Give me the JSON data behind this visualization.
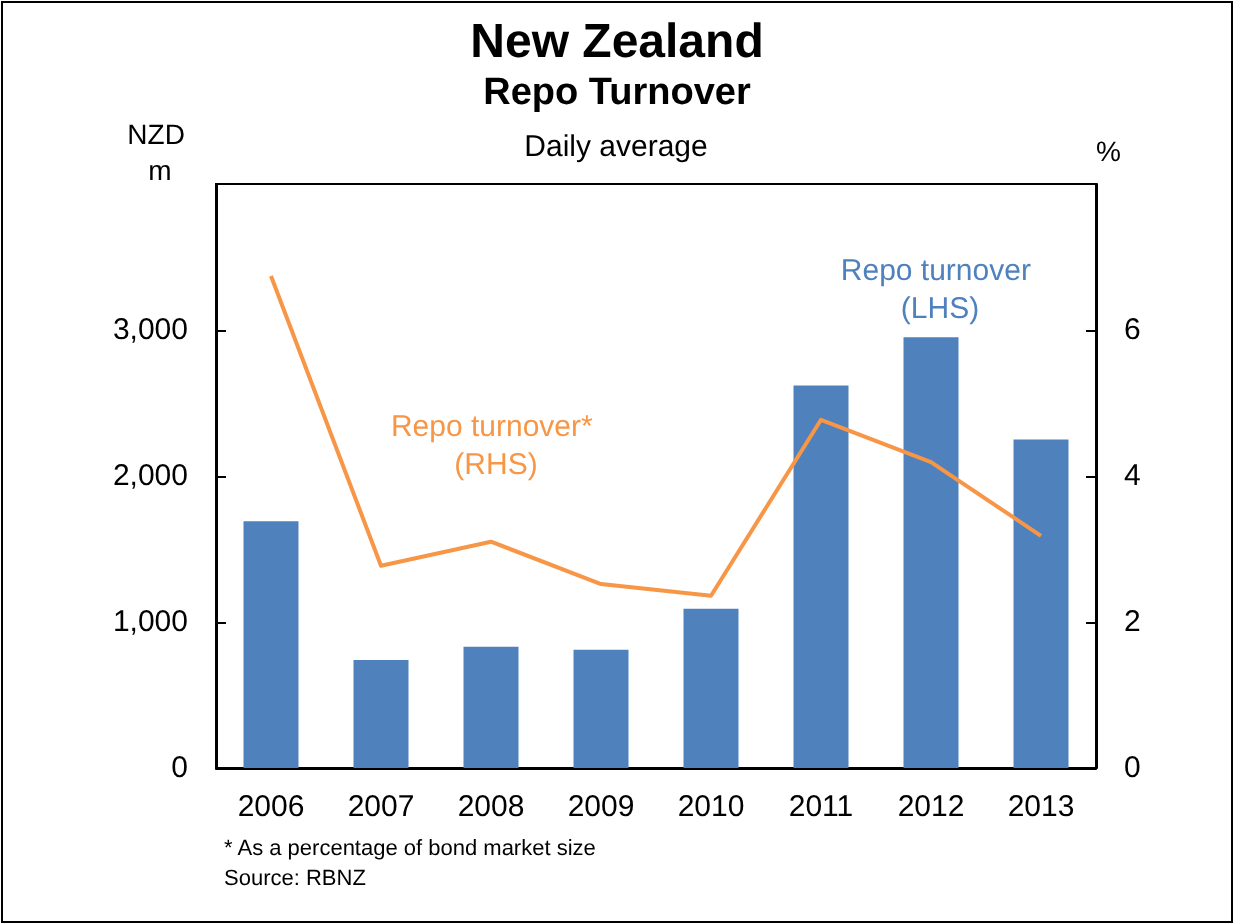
{
  "chart_data": {
    "type": "bar",
    "title": "New Zealand",
    "subtitle": "Repo Turnover",
    "ylabel": "NZD m",
    "y2label": "%",
    "annotations": [
      "Daily average",
      "* As a percentage of bond market size",
      "Source: RBNZ"
    ],
    "categories": [
      "2006",
      "2007",
      "2008",
      "2009",
      "2010",
      "2011",
      "2012",
      "2013"
    ],
    "series": [
      {
        "name": "Repo turnover (LHS)",
        "color": "#4f81bd",
        "values": [
          1690,
          740,
          830,
          810,
          1090,
          2620,
          2950,
          2250
        ]
      },
      {
        "name": "Repo turnover* (RHS)",
        "type": "line",
        "axis": "y2",
        "color": "#f79646",
        "values": [
          6.74,
          2.77,
          3.1,
          2.52,
          2.36,
          4.77,
          4.19,
          3.18
        ]
      }
    ],
    "ylim": [
      0,
      4000
    ],
    "yticks": [
      0,
      {
        "value": 1000,
        "label": "1,000"
      },
      {
        "value": 2000,
        "label": "2,000"
      },
      {
        "value": 3000,
        "label": "3,000"
      }
    ],
    "y2lim": [
      0,
      8
    ],
    "y2ticks": [
      0,
      2,
      4,
      6
    ],
    "grid": false,
    "legend": false,
    "marker": "none",
    "line_style": "solid"
  }
}
